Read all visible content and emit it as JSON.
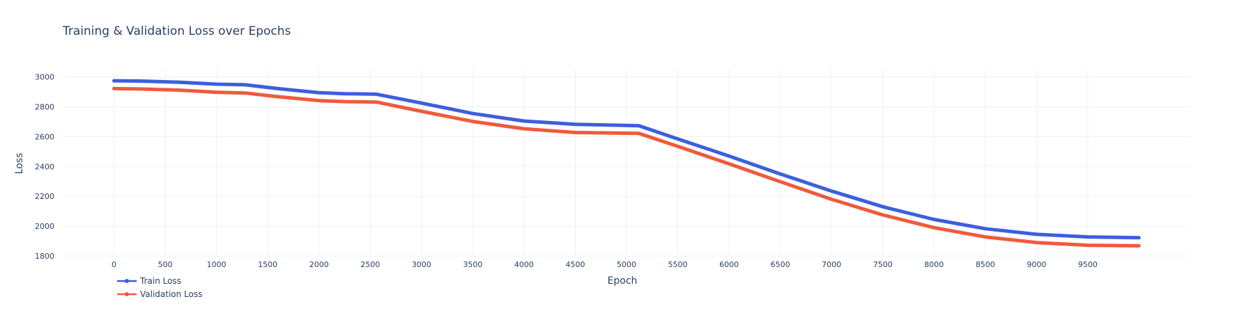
{
  "chart_data": {
    "type": "line",
    "title": "Training & Validation Loss over Epochs",
    "xlabel": "Epoch",
    "ylabel": "Loss",
    "xlim": [
      -500,
      10500
    ],
    "ylim": [
      1800,
      3050
    ],
    "xticks": [
      0,
      500,
      1000,
      1500,
      2000,
      2500,
      3000,
      3500,
      4000,
      4500,
      5000,
      5500,
      6000,
      6500,
      7000,
      7500,
      8000,
      8500,
      9000,
      9500
    ],
    "yticks": [
      1800,
      2000,
      2200,
      2400,
      2600,
      2800,
      3000
    ],
    "grid": true,
    "legend_position": "bottom-left",
    "x": [
      0,
      250,
      640,
      1000,
      1280,
      1600,
      2000,
      2250,
      2560,
      3000,
      3500,
      4000,
      4500,
      5120,
      5500,
      6000,
      6500,
      7000,
      7500,
      8000,
      8500,
      9000,
      9500,
      9999
    ],
    "series": [
      {
        "name": "Train Loss",
        "color": "#3c5fdc",
        "values": [
          2975,
          2973,
          2965,
          2952,
          2948,
          2922,
          2895,
          2888,
          2885,
          2825,
          2755,
          2705,
          2683,
          2673,
          2585,
          2470,
          2350,
          2235,
          2130,
          2045,
          1983,
          1945,
          1928,
          1922
        ]
      },
      {
        "name": "Validation Loss",
        "color": "#ef5a3c",
        "values": [
          2922,
          2920,
          2912,
          2898,
          2893,
          2868,
          2842,
          2835,
          2832,
          2770,
          2702,
          2653,
          2628,
          2622,
          2535,
          2418,
          2298,
          2180,
          2075,
          1990,
          1928,
          1890,
          1872,
          1868
        ]
      }
    ]
  }
}
